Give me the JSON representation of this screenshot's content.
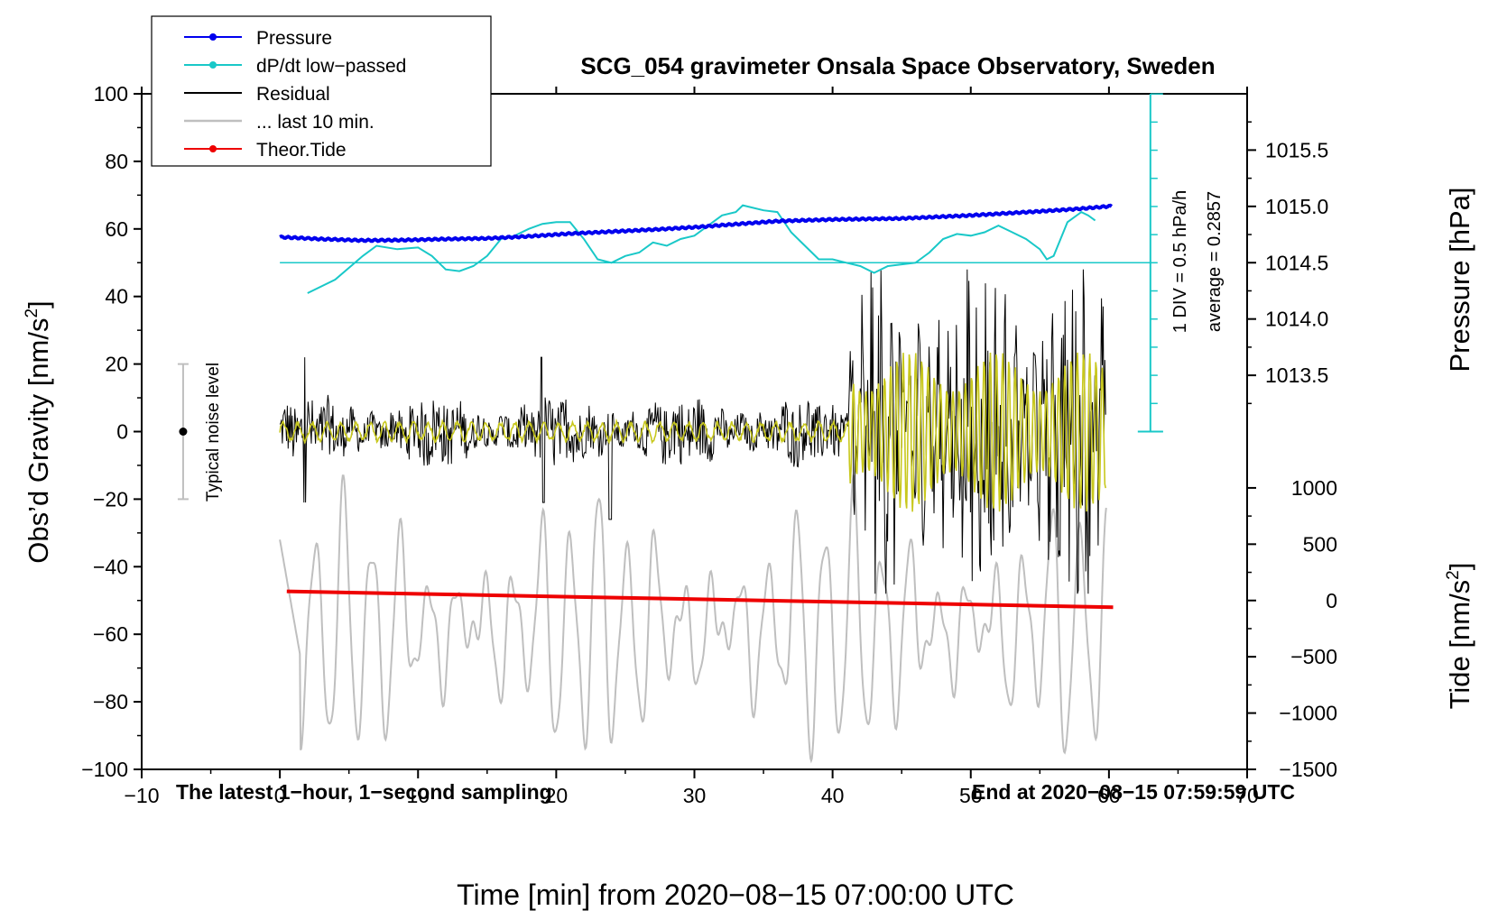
{
  "chart_data": {
    "type": "line",
    "title": "SCG_054 gravimeter Onsala Space Observatory, Sweden",
    "xlabel": "Time [min] from 2020−08−15 07:00:00 UTC",
    "ylabel_left_main": "Obs’d Gravity [nm/s",
    "ylabel_left_sup": "2",
    "ylabel_left_end": "]",
    "ylabel_right_top": "Pressure [hPa]",
    "ylabel_right_bottom_main": "Tide [nm/s",
    "ylabel_right_bottom_sup": "2",
    "ylabel_right_bottom_end": "]",
    "xlim": [
      -10,
      70
    ],
    "ylim": [
      -100,
      100
    ],
    "x_ticks": [
      {
        "value": -10,
        "label": "−10"
      },
      {
        "value": 0,
        "label": "0"
      },
      {
        "value": 10,
        "label": "10"
      },
      {
        "value": 20,
        "label": "20"
      },
      {
        "value": 30,
        "label": "30"
      },
      {
        "value": 40,
        "label": "40"
      },
      {
        "value": 50,
        "label": "50"
      },
      {
        "value": 60,
        "label": "60"
      },
      {
        "value": 70,
        "label": "70"
      }
    ],
    "y_ticks": [
      {
        "value": 100,
        "label": "100"
      },
      {
        "value": 80,
        "label": "80"
      },
      {
        "value": 60,
        "label": "60"
      },
      {
        "value": 40,
        "label": "40"
      },
      {
        "value": 20,
        "label": "20"
      },
      {
        "value": 0,
        "label": "0"
      },
      {
        "value": -20,
        "label": "−20"
      },
      {
        "value": -40,
        "label": "−40"
      },
      {
        "value": -60,
        "label": "−60"
      },
      {
        "value": -80,
        "label": "−80"
      },
      {
        "value": -100,
        "label": "−100"
      }
    ],
    "pressure_axis": {
      "ticks": [
        {
          "value": 1015.5,
          "label": "1015.5"
        },
        {
          "value": 1015.0,
          "label": "1015.0"
        },
        {
          "value": 1014.5,
          "label": "1014.5"
        },
        {
          "value": 1014.0,
          "label": "1014.0"
        },
        {
          "value": 1013.5,
          "label": "1013.5"
        }
      ],
      "map_gravity": [
        [
          1014.5,
          50
        ],
        [
          1015.0,
          66.67
        ]
      ]
    },
    "tide_axis": {
      "ticks": [
        {
          "value": 1000,
          "label": "1000"
        },
        {
          "value": 500,
          "label": "500"
        },
        {
          "value": 0,
          "label": "0"
        },
        {
          "value": -500,
          "label": "−500"
        },
        {
          "value": -1000,
          "label": "−1000"
        },
        {
          "value": -1500,
          "label": "−1500"
        }
      ],
      "map_gravity": [
        [
          0,
          -50
        ],
        [
          1000,
          -16.67
        ]
      ]
    },
    "legend": {
      "position": "top-left",
      "entries": [
        {
          "label": "Pressure",
          "color": "#0000ee",
          "marker": true
        },
        {
          "label": "dP/dt low−passed",
          "color": "#19c8c8",
          "marker": true
        },
        {
          "label": "Residual",
          "color": "#000000",
          "marker": false
        },
        {
          "label": "... last 10 min.",
          "color": "#bfbfbf",
          "marker": false
        },
        {
          "label": "Theor.Tide",
          "color": "#ee0000",
          "marker": true
        }
      ]
    },
    "noise_level": {
      "label": "Typical noise level",
      "x": -7,
      "range": [
        -20,
        20
      ]
    },
    "dpdt_scale": {
      "label1": "1 DIV = 0.5 hPa/h",
      "label2": "average = 0.2857",
      "x": 63,
      "range": [
        0,
        100
      ],
      "baseline": 50
    },
    "annotations": {
      "bottom_left": "The latest 1−hour, 1−second sampling",
      "bottom_right": "End at 2020−08−15 07:59:59 UTC"
    },
    "series": [
      {
        "name": "Pressure",
        "unit": "gravity-axis",
        "points": [
          [
            0,
            57.6
          ],
          [
            3,
            57.0
          ],
          [
            6,
            56.6
          ],
          [
            9,
            56.7
          ],
          [
            12,
            57.0
          ],
          [
            15,
            57.2
          ],
          [
            18,
            57.8
          ],
          [
            21,
            58.6
          ],
          [
            24,
            59.2
          ],
          [
            27,
            59.8
          ],
          [
            30,
            60.5
          ],
          [
            33,
            61.4
          ],
          [
            36,
            62.3
          ],
          [
            40,
            62.8
          ],
          [
            45,
            63.1
          ],
          [
            50,
            64.0
          ],
          [
            55,
            65.2
          ],
          [
            58,
            66.0
          ],
          [
            60.3,
            66.8
          ]
        ]
      },
      {
        "name": "dP/dt low-passed",
        "unit": "gravity-axis",
        "points": [
          [
            2,
            41
          ],
          [
            4,
            45
          ],
          [
            6,
            52
          ],
          [
            7,
            55
          ],
          [
            8.5,
            54
          ],
          [
            10,
            54.5
          ],
          [
            11,
            52
          ],
          [
            12,
            48
          ],
          [
            13,
            47.5
          ],
          [
            14,
            49
          ],
          [
            15,
            52
          ],
          [
            16,
            57
          ],
          [
            17,
            58
          ],
          [
            18,
            60
          ],
          [
            19,
            61.5
          ],
          [
            20,
            62
          ],
          [
            21,
            62
          ],
          [
            22,
            57
          ],
          [
            23,
            51
          ],
          [
            24,
            50
          ],
          [
            25,
            52
          ],
          [
            26,
            53
          ],
          [
            27,
            56
          ],
          [
            28,
            55
          ],
          [
            29,
            57
          ],
          [
            30,
            58
          ],
          [
            31,
            61
          ],
          [
            32,
            64
          ],
          [
            33,
            65
          ],
          [
            33.5,
            67
          ],
          [
            34,
            66.5
          ],
          [
            35,
            65.5
          ],
          [
            36,
            65
          ],
          [
            37,
            59
          ],
          [
            38,
            55
          ],
          [
            39,
            51
          ],
          [
            40,
            51
          ],
          [
            41,
            50
          ],
          [
            42,
            49
          ],
          [
            43,
            47
          ],
          [
            44,
            49
          ],
          [
            45,
            49.5
          ],
          [
            46,
            50
          ],
          [
            47,
            53
          ],
          [
            48,
            57
          ],
          [
            49,
            58.5
          ],
          [
            50,
            58
          ],
          [
            51,
            59
          ],
          [
            52,
            61
          ],
          [
            53,
            59
          ],
          [
            54,
            57
          ],
          [
            55,
            54
          ],
          [
            55.5,
            51
          ],
          [
            56,
            52
          ],
          [
            57,
            62
          ],
          [
            58,
            65
          ],
          [
            58.5,
            64
          ],
          [
            59,
            62.5
          ]
        ]
      },
      {
        "name": "Theor.Tide",
        "unit": "gravity-axis",
        "points": [
          [
            0.5,
            -47.3
          ],
          [
            60.3,
            -52.0
          ]
        ]
      },
      {
        "name": "Residual",
        "unit": "gravity-axis",
        "note": "1-second samples, amplitude envelope approx ±10 before 41 min, ±35 after"
      },
      {
        "name": "... last 10 min.",
        "unit": "gravity-axis",
        "note": "oscillating grey trace between about -105 and -13"
      }
    ]
  }
}
